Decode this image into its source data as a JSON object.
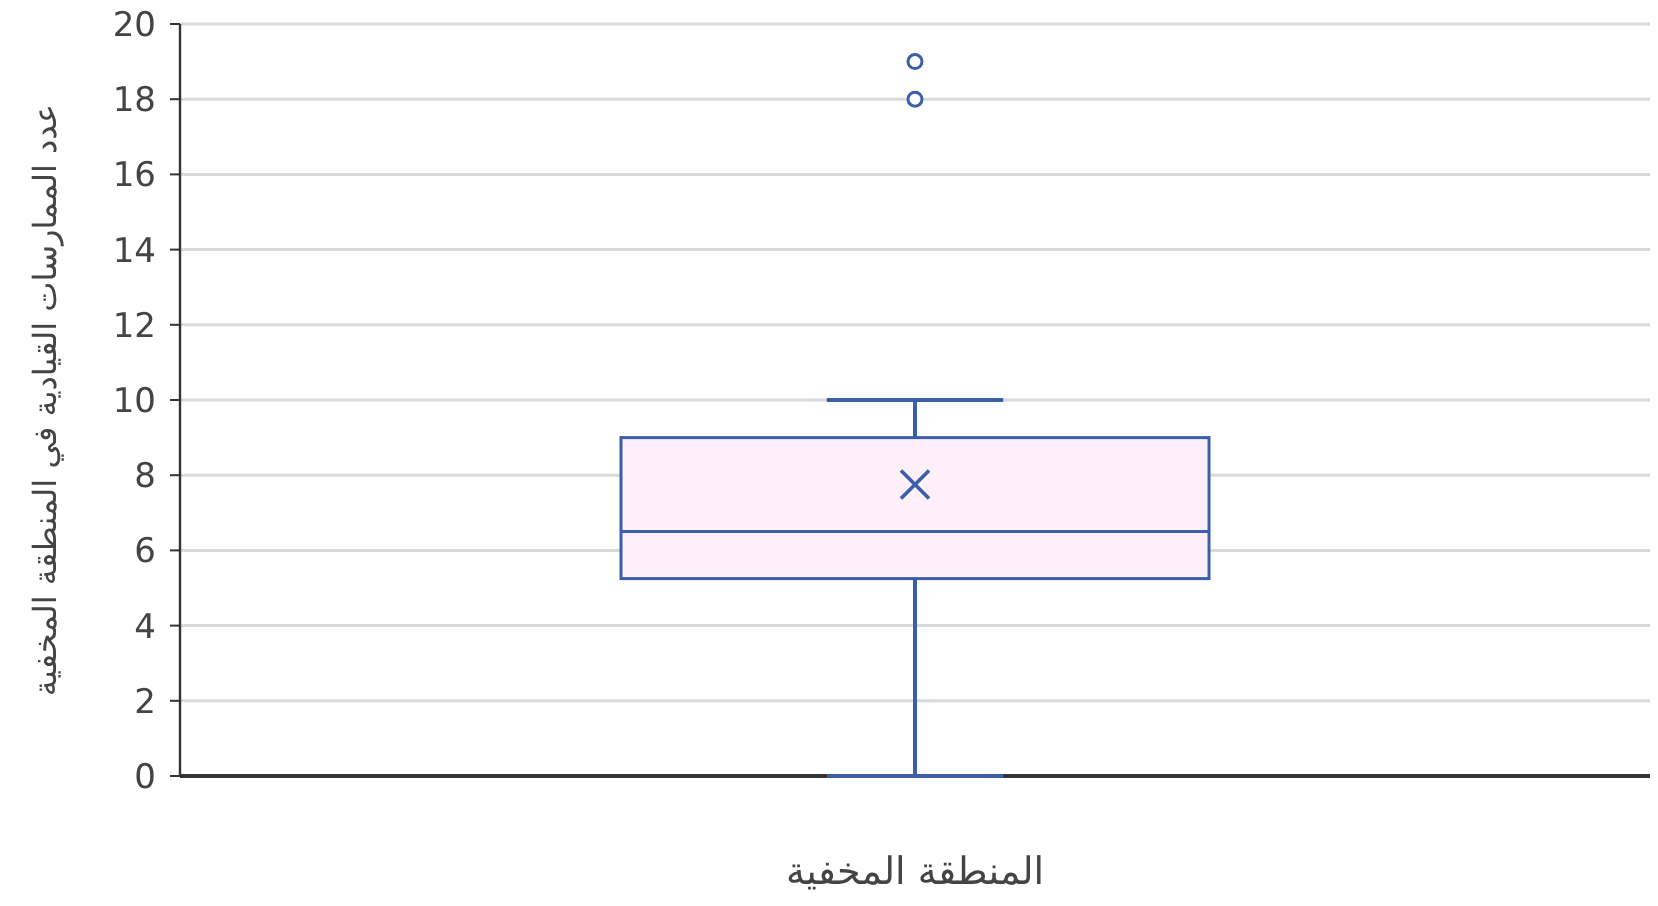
{
  "chart_data": {
    "type": "box",
    "ylabel": "عدد الممارسات القيادية في المنطقة المخفية",
    "categories": [
      "المنطقة المخفية"
    ],
    "boxes": [
      {
        "low": 0,
        "q1": 5.25,
        "median": 6.5,
        "q3": 9,
        "high": 10,
        "mean": 7.75,
        "outliers": [
          18,
          19
        ]
      }
    ],
    "color": "#3a5ea8",
    "ylim": [
      0,
      20
    ],
    "yticks": [
      0,
      2,
      4,
      6,
      8,
      10,
      12,
      14,
      16,
      18,
      20
    ],
    "grid": "y"
  }
}
